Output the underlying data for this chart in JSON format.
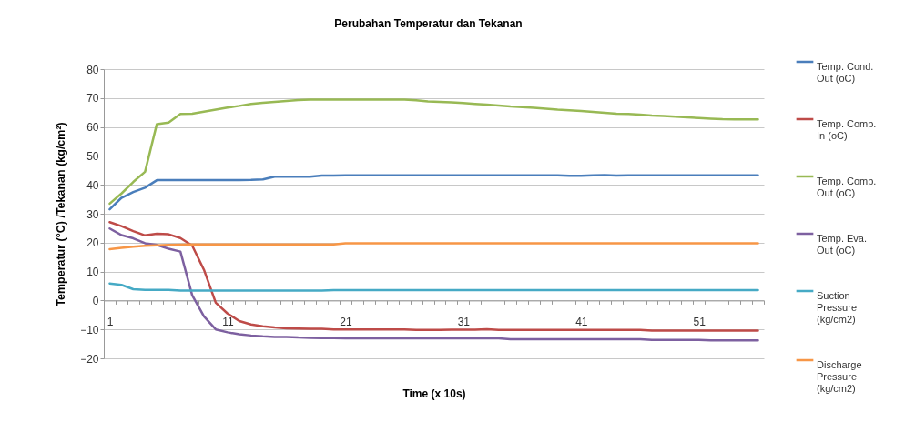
{
  "chart_data": {
    "type": "line",
    "title": "Perubahan Temperatur dan Tekanan",
    "xlabel": "Time (x 10s)",
    "ylabel": "Temperatur (°C)  /Tekanan (kg/cm²)",
    "categories": [
      "1",
      null,
      null,
      null,
      null,
      null,
      null,
      null,
      null,
      null,
      "11",
      null,
      null,
      null,
      null,
      null,
      null,
      null,
      null,
      null,
      "21",
      null,
      null,
      null,
      null,
      null,
      null,
      null,
      null,
      null,
      "31",
      null,
      null,
      null,
      null,
      null,
      null,
      null,
      null,
      null,
      "41",
      null,
      null,
      null,
      null,
      null,
      null,
      null,
      null,
      null,
      "51",
      null,
      null,
      null,
      null,
      null
    ],
    "ylim": [
      -20,
      80
    ],
    "yticks": [
      -20,
      -10,
      0,
      10,
      20,
      30,
      40,
      50,
      60,
      70,
      80
    ],
    "grid": "y",
    "legend": "right",
    "series": [
      {
        "name": "Temp. Cond. Out (oC)",
        "color": "#4a7ebb",
        "values": [
          31.5,
          35.5,
          37.5,
          39,
          41.6,
          41.6,
          41.6,
          41.6,
          41.6,
          41.6,
          41.6,
          41.6,
          41.7,
          41.9,
          42.8,
          42.8,
          42.8,
          42.8,
          43.2,
          43.2,
          43.3,
          43.3,
          43.3,
          43.3,
          43.3,
          43.3,
          43.3,
          43.3,
          43.3,
          43.3,
          43.3,
          43.3,
          43.3,
          43.3,
          43.3,
          43.3,
          43.3,
          43.3,
          43.3,
          43.1,
          43.1,
          43.3,
          43.4,
          43.2,
          43.3,
          43.3,
          43.3,
          43.3,
          43.3,
          43.3,
          43.3,
          43.3,
          43.3,
          43.3,
          43.3,
          43.3
        ]
      },
      {
        "name": "Temp. Comp. In (oC)",
        "color": "#be4b48",
        "values": [
          27.1,
          25.7,
          24,
          22.5,
          23.1,
          22.9,
          21.6,
          19,
          10.6,
          -0.8,
          -4.5,
          -7.1,
          -8.3,
          -8.9,
          -9.3,
          -9.6,
          -9.7,
          -9.8,
          -9.8,
          -10,
          -10,
          -10,
          -10,
          -10,
          -10,
          -10,
          -10.2,
          -10.2,
          -10.2,
          -10.1,
          -10.1,
          -10.1,
          -9.9,
          -10.2,
          -10.2,
          -10.2,
          -10.2,
          -10.2,
          -10.2,
          -10.2,
          -10.2,
          -10.2,
          -10.2,
          -10.2,
          -10.2,
          -10.2,
          -10.4,
          -10.4,
          -10.4,
          -10.4,
          -10.4,
          -10.4,
          -10.4,
          -10.4,
          -10.4,
          -10.4
        ]
      },
      {
        "name": "Temp. Comp. Out (oC)",
        "color": "#98b954",
        "values": [
          33.5,
          37,
          41,
          44.5,
          61,
          61.5,
          64.5,
          64.6,
          65.3,
          66,
          66.7,
          67.3,
          68,
          68.4,
          68.7,
          69,
          69.3,
          69.5,
          69.5,
          69.5,
          69.5,
          69.5,
          69.5,
          69.5,
          69.5,
          69.5,
          69.2,
          68.8,
          68.7,
          68.5,
          68.3,
          68,
          67.7,
          67.4,
          67.1,
          66.9,
          66.6,
          66.3,
          66,
          65.8,
          65.5,
          65.2,
          64.9,
          64.6,
          64.5,
          64.3,
          64,
          63.8,
          63.6,
          63.3,
          63.1,
          62.9,
          62.7,
          62.6,
          62.6,
          62.6
        ]
      },
      {
        "name": "Temp. Eva. Out (oC)",
        "color": "#7d60a0",
        "values": [
          24.9,
          22.6,
          21.5,
          19.8,
          19.2,
          17.9,
          16.9,
          1.8,
          -5.5,
          -10,
          -11,
          -11.7,
          -12.1,
          -12.4,
          -12.6,
          -12.6,
          -12.8,
          -12.9,
          -13,
          -13,
          -13.1,
          -13.1,
          -13.1,
          -13.1,
          -13.1,
          -13.1,
          -13.1,
          -13.1,
          -13.1,
          -13.1,
          -13.1,
          -13.1,
          -13.1,
          -13.1,
          -13.4,
          -13.4,
          -13.4,
          -13.4,
          -13.4,
          -13.4,
          -13.4,
          -13.4,
          -13.4,
          -13.4,
          -13.4,
          -13.4,
          -13.6,
          -13.6,
          -13.6,
          -13.6,
          -13.6,
          -13.8,
          -13.8,
          -13.8,
          -13.8,
          -13.8
        ]
      },
      {
        "name": "Suction Pressure (kg/cm2)",
        "color": "#46aac5",
        "values": [
          5.9,
          5.4,
          3.9,
          3.7,
          3.7,
          3.7,
          3.4,
          3.4,
          3.4,
          3.4,
          3.4,
          3.4,
          3.4,
          3.4,
          3.4,
          3.4,
          3.4,
          3.4,
          3.4,
          3.6,
          3.6,
          3.6,
          3.6,
          3.6,
          3.6,
          3.6,
          3.6,
          3.6,
          3.6,
          3.6,
          3.6,
          3.6,
          3.6,
          3.6,
          3.6,
          3.6,
          3.6,
          3.6,
          3.6,
          3.6,
          3.6,
          3.6,
          3.6,
          3.6,
          3.6,
          3.6,
          3.6,
          3.6,
          3.6,
          3.6,
          3.6,
          3.6,
          3.6,
          3.6,
          3.6,
          3.6
        ]
      },
      {
        "name": "Discharge Pressure (kg/cm2)",
        "color": "#f79646",
        "values": [
          17.7,
          18.2,
          18.6,
          18.9,
          19.1,
          19.2,
          19.3,
          19.4,
          19.4,
          19.4,
          19.4,
          19.4,
          19.4,
          19.4,
          19.4,
          19.4,
          19.4,
          19.4,
          19.4,
          19.4,
          19.8,
          19.8,
          19.8,
          19.8,
          19.8,
          19.8,
          19.8,
          19.8,
          19.8,
          19.8,
          19.8,
          19.8,
          19.8,
          19.8,
          19.8,
          19.8,
          19.8,
          19.8,
          19.8,
          19.8,
          19.8,
          19.8,
          19.8,
          19.8,
          19.8,
          19.8,
          19.8,
          19.8,
          19.8,
          19.8,
          19.8,
          19.8,
          19.8,
          19.8,
          19.8,
          19.8
        ]
      }
    ]
  }
}
